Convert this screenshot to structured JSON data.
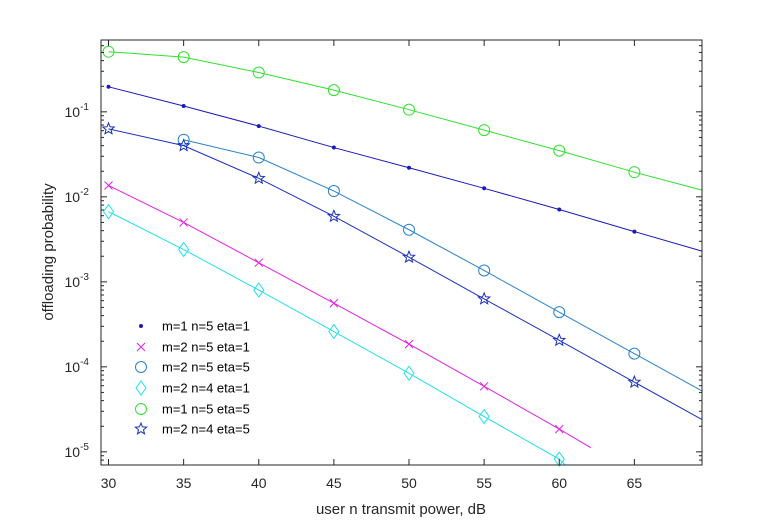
{
  "chart_data": {
    "type": "line",
    "title": "",
    "xlabel": "user n transmit power, dB",
    "ylabel": "offloading probability",
    "xlim": [
      29.5,
      69.5
    ],
    "ylim": [
      7e-06,
      0.7
    ],
    "yscale": "log",
    "x_ticks": [
      "30",
      "35",
      "40",
      "45",
      "50",
      "55",
      "60",
      "65"
    ],
    "y_ticks": [
      {
        "base": "10",
        "exp": "-5"
      },
      {
        "base": "10",
        "exp": "-4"
      },
      {
        "base": "10",
        "exp": "-3"
      },
      {
        "base": "10",
        "exp": "-2"
      },
      {
        "base": "10",
        "exp": "-1"
      }
    ],
    "grid": false,
    "legend_position": "bottom-left",
    "series": [
      {
        "name": "m=1 n=5 eta=1",
        "color": "#1a1ab8",
        "marker": "dot",
        "x": [
          30,
          35,
          40,
          45,
          50,
          55,
          60,
          65,
          69.5
        ],
        "y": [
          0.197,
          0.117,
          0.068,
          0.038,
          0.022,
          0.0126,
          0.0071,
          0.0039,
          0.0023
        ]
      },
      {
        "name": "m=2 n=5 eta=1",
        "color": "#e020e0",
        "marker": "x",
        "x": [
          30,
          35,
          40,
          45,
          50,
          55,
          60,
          62.1
        ],
        "y": [
          0.0136,
          0.005,
          0.00168,
          0.00056,
          0.000185,
          5.9e-05,
          1.85e-05,
          1.12e-05
        ]
      },
      {
        "name": "m=2 n=5 eta=5",
        "color": "#2a82c8",
        "marker": "circle",
        "x": [
          35,
          40,
          45,
          50,
          55,
          60,
          65,
          69.5
        ],
        "y": [
          0.047,
          0.029,
          0.0117,
          0.0041,
          0.00136,
          0.00044,
          0.000143,
          5.2e-05
        ]
      },
      {
        "name": "m=2 n=4 eta=1",
        "color": "#20e0e8",
        "marker": "diamond",
        "x": [
          30,
          35,
          40,
          45,
          50,
          55,
          60,
          60.4
        ],
        "y": [
          0.0067,
          0.0024,
          0.0008,
          0.00026,
          8.4e-05,
          2.6e-05,
          8.2e-06,
          7e-06
        ]
      },
      {
        "name": "m=1 n=5 eta=5",
        "color": "#30e030",
        "marker": "circle",
        "x": [
          30,
          35,
          40,
          45,
          50,
          55,
          60,
          65,
          69.5
        ],
        "y": [
          0.51,
          0.44,
          0.29,
          0.18,
          0.106,
          0.061,
          0.035,
          0.0195,
          0.012
        ]
      },
      {
        "name": "m=2 n=4 eta=5",
        "color": "#1a30b8",
        "marker": "star",
        "x": [
          30,
          35,
          40,
          45,
          50,
          55,
          60,
          65,
          69.5
        ],
        "y": [
          0.063,
          0.04,
          0.0165,
          0.0059,
          0.00195,
          0.00063,
          0.000205,
          6.6e-05,
          2.4e-05
        ]
      }
    ]
  }
}
